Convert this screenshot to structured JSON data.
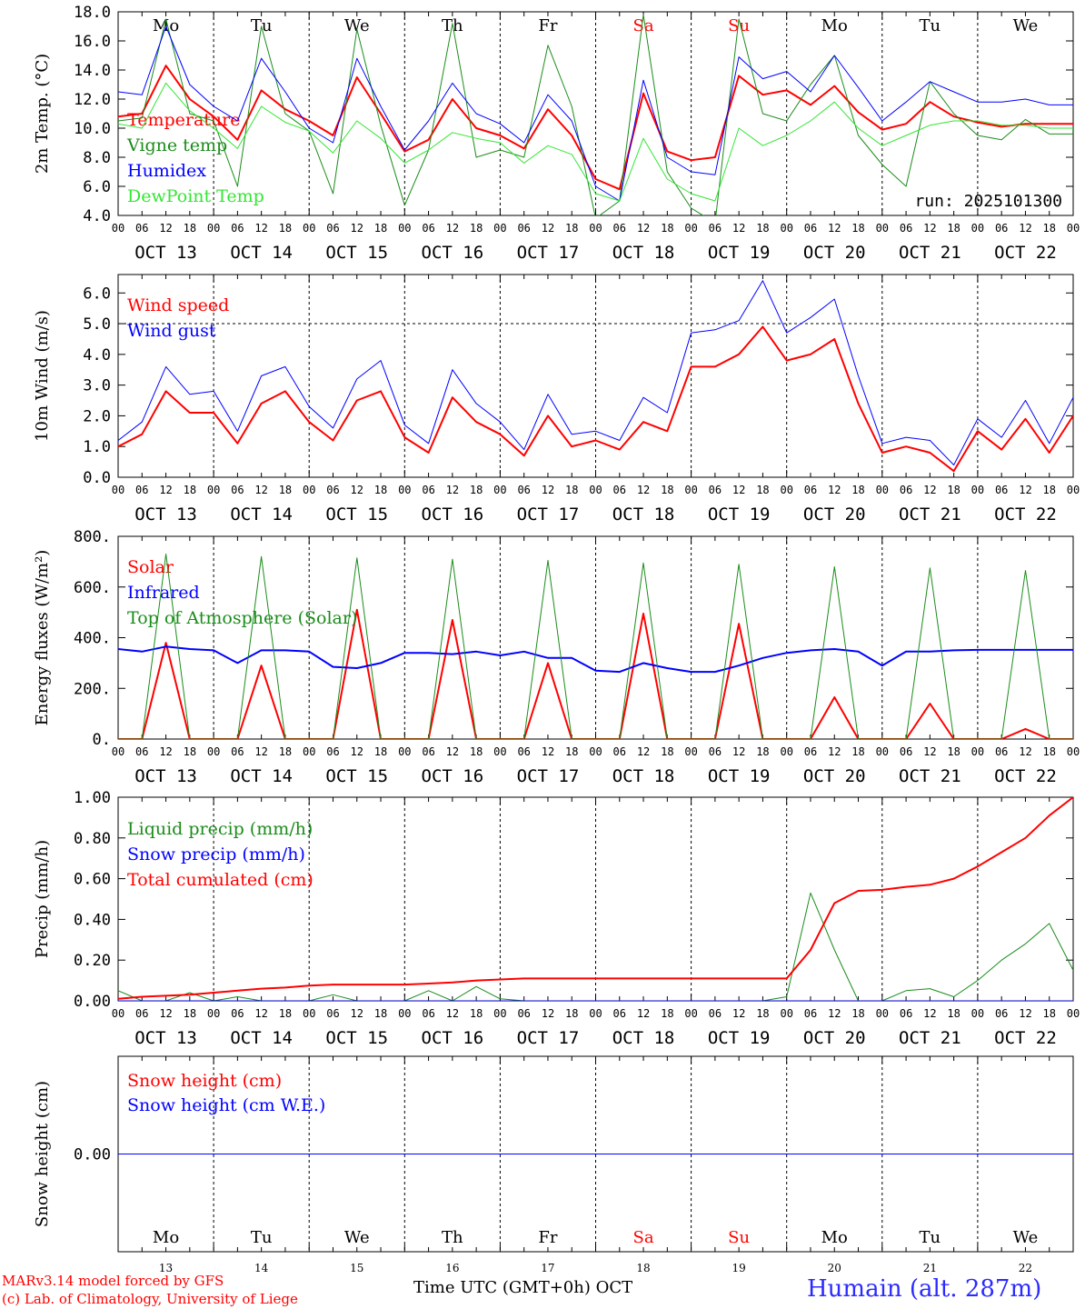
{
  "colors": {
    "red": "#ff0000",
    "green": "#1a8c1a",
    "blue": "#0000ff",
    "lightgreen": "#33e633",
    "axis": "#000000",
    "grid": "#000000"
  },
  "day_names": [
    "Mo",
    "Tu",
    "We",
    "Th",
    "Fr",
    "Sa",
    "Su",
    "Mo",
    "Tu",
    "We"
  ],
  "weekend_days": [
    5,
    6
  ],
  "day_labels": [
    "OCT 13",
    "OCT 14",
    "OCT 15",
    "OCT 16",
    "OCT 17",
    "OCT 18",
    "OCT 19",
    "OCT 20",
    "OCT 21",
    "OCT 22"
  ],
  "day_numbers": [
    "13",
    "14",
    "15",
    "16",
    "17",
    "18",
    "19",
    "20",
    "21",
    "22"
  ],
  "hour_ticks": [
    "00",
    "06",
    "12",
    "18"
  ],
  "hour_tick_end": "00",
  "footer": {
    "credit_line1": "MARv3.14 model forced by GFS",
    "credit_line2": "(c) Lab. of Climatology, University of Liege",
    "x_axis_label": "Time UTC (GMT+0h) OCT",
    "station": "Humain (alt. 287m)"
  },
  "chart_data": [
    {
      "type": "line",
      "title": "",
      "ylabel": "2m Temp. (°C)",
      "ylim": [
        4.0,
        18.0
      ],
      "yticks": [
        4.0,
        6.0,
        8.0,
        10.0,
        12.0,
        14.0,
        16.0,
        18.0
      ],
      "ytick_labels": [
        "4.0",
        "6.0",
        "8.0",
        "10.0",
        "12.0",
        "14.0",
        "16.0",
        "18.0"
      ],
      "annotation": "run: 2025101300",
      "x_hours": [
        0,
        6,
        12,
        18,
        24,
        30,
        36,
        42,
        48,
        54,
        60,
        66,
        72,
        78,
        84,
        90,
        96,
        102,
        108,
        114,
        120,
        126,
        132,
        138,
        144,
        150,
        156,
        162,
        168,
        174,
        180,
        186,
        192,
        198,
        204,
        210,
        216,
        222,
        228,
        234,
        240
      ],
      "series": [
        {
          "name": "Temperature",
          "color": "red",
          "width": 2,
          "values": [
            10.8,
            11.0,
            14.3,
            12.0,
            10.8,
            9.2,
            12.6,
            11.3,
            10.5,
            9.5,
            13.5,
            11.0,
            8.4,
            9.2,
            12.0,
            10.0,
            9.5,
            8.6,
            11.3,
            9.5,
            6.5,
            5.8,
            12.4,
            8.4,
            7.8,
            8.0,
            13.6,
            12.3,
            12.6,
            11.6,
            12.9,
            11.1,
            9.9,
            10.3,
            11.8,
            10.8,
            10.4,
            10.1,
            10.3,
            10.3,
            10.3
          ]
        },
        {
          "name": "Vigne temp",
          "color": "green",
          "width": 1,
          "values": [
            10.5,
            10.7,
            17.5,
            11.0,
            10.5,
            6.0,
            17.0,
            11.0,
            9.8,
            5.5,
            16.8,
            10.2,
            4.7,
            8.5,
            17.2,
            8.0,
            8.5,
            8.0,
            15.7,
            11.5,
            3.8,
            5.0,
            17.8,
            7.0,
            4.5,
            3.5,
            17.5,
            11.0,
            10.5,
            13.0,
            15.0,
            9.5,
            7.5,
            6.0,
            13.2,
            11.0,
            9.5,
            9.2,
            10.6,
            9.6,
            9.6
          ]
        },
        {
          "name": "Humidex",
          "color": "blue",
          "width": 1,
          "values": [
            12.5,
            12.3,
            17.0,
            13.0,
            11.5,
            10.5,
            14.8,
            12.5,
            10.0,
            9.0,
            14.8,
            11.5,
            8.5,
            10.5,
            13.1,
            11.0,
            10.3,
            9.0,
            12.3,
            10.5,
            6.0,
            5.0,
            13.3,
            8.0,
            7.0,
            6.8,
            14.9,
            13.4,
            13.9,
            12.5,
            15.0,
            12.8,
            10.5,
            11.8,
            13.2,
            12.5,
            11.8,
            11.8,
            12.0,
            11.6,
            11.6
          ]
        },
        {
          "name": "DewPoint Temp",
          "color": "lightgreen",
          "width": 1,
          "values": [
            10.3,
            10.0,
            13.1,
            11.2,
            10.0,
            8.6,
            11.5,
            10.4,
            9.8,
            8.3,
            10.5,
            9.3,
            7.6,
            8.5,
            9.7,
            9.3,
            9.0,
            7.6,
            8.8,
            8.2,
            5.5,
            5.0,
            9.3,
            6.5,
            5.5,
            5.0,
            10.0,
            8.8,
            9.5,
            10.5,
            11.8,
            10.0,
            8.8,
            9.5,
            10.2,
            10.5,
            10.5,
            10.2,
            10.2,
            10.0,
            10.0
          ]
        }
      ]
    },
    {
      "type": "line",
      "title": "",
      "ylabel": "10m Wind (m/s)",
      "ylim": [
        0.0,
        6.6
      ],
      "yticks": [
        0.0,
        1.0,
        2.0,
        3.0,
        4.0,
        5.0,
        6.0
      ],
      "ytick_labels": [
        "0.0",
        "1.0",
        "2.0",
        "3.0",
        "4.0",
        "5.0",
        "6.0"
      ],
      "reference_line": 5.0,
      "x_hours": [
        0,
        6,
        12,
        18,
        24,
        30,
        36,
        42,
        48,
        54,
        60,
        66,
        72,
        78,
        84,
        90,
        96,
        102,
        108,
        114,
        120,
        126,
        132,
        138,
        144,
        150,
        156,
        162,
        168,
        174,
        180,
        186,
        192,
        198,
        204,
        210,
        216,
        222,
        228,
        234,
        240
      ],
      "series": [
        {
          "name": "Wind speed",
          "color": "red",
          "width": 2,
          "values": [
            1.0,
            1.4,
            2.8,
            2.1,
            2.1,
            1.1,
            2.4,
            2.8,
            1.8,
            1.2,
            2.5,
            2.8,
            1.3,
            0.8,
            2.6,
            1.8,
            1.4,
            0.7,
            2.0,
            1.0,
            1.2,
            0.9,
            1.8,
            1.5,
            3.6,
            3.6,
            4.0,
            4.9,
            3.8,
            4.0,
            4.5,
            2.4,
            0.8,
            1.0,
            0.8,
            0.2,
            1.5,
            0.9,
            1.9,
            0.8,
            2.0
          ]
        },
        {
          "name": "Wind gust",
          "color": "blue",
          "width": 1,
          "values": [
            1.2,
            1.8,
            3.6,
            2.7,
            2.8,
            1.5,
            3.3,
            3.6,
            2.3,
            1.6,
            3.2,
            3.8,
            1.7,
            1.1,
            3.5,
            2.4,
            1.8,
            0.9,
            2.7,
            1.4,
            1.5,
            1.2,
            2.6,
            2.1,
            4.7,
            4.8,
            5.1,
            6.4,
            4.7,
            5.2,
            5.8,
            3.3,
            1.1,
            1.3,
            1.2,
            0.4,
            1.9,
            1.3,
            2.5,
            1.1,
            2.6
          ]
        }
      ]
    },
    {
      "type": "line",
      "title": "",
      "ylabel": "Energy fluxes (W/m²)",
      "ylim": [
        0,
        800
      ],
      "yticks": [
        0,
        200,
        400,
        600,
        800
      ],
      "ytick_labels": [
        "0.",
        "200.",
        "400.",
        "600.",
        "800."
      ],
      "x_hours": [
        0,
        6,
        12,
        18,
        24,
        30,
        36,
        42,
        48,
        54,
        60,
        66,
        72,
        78,
        84,
        90,
        96,
        102,
        108,
        114,
        120,
        126,
        132,
        138,
        144,
        150,
        156,
        162,
        168,
        174,
        180,
        186,
        192,
        198,
        204,
        210,
        216,
        222,
        228,
        234,
        240
      ],
      "series": [
        {
          "name": "Solar",
          "color": "red",
          "width": 2,
          "values": [
            0,
            0,
            380,
            0,
            0,
            0,
            290,
            0,
            0,
            0,
            510,
            0,
            0,
            0,
            470,
            0,
            0,
            0,
            300,
            0,
            0,
            0,
            495,
            0,
            0,
            0,
            455,
            0,
            0,
            0,
            165,
            0,
            0,
            0,
            140,
            0,
            0,
            0,
            40,
            0,
            0
          ]
        },
        {
          "name": "Infrared",
          "color": "blue",
          "width": 2,
          "values": [
            355,
            345,
            365,
            355,
            350,
            300,
            350,
            350,
            345,
            285,
            280,
            300,
            340,
            340,
            335,
            345,
            330,
            345,
            320,
            320,
            270,
            265,
            300,
            280,
            265,
            265,
            290,
            320,
            340,
            350,
            355,
            345,
            290,
            345,
            345,
            350,
            352,
            352,
            352,
            352,
            352
          ]
        },
        {
          "name": "Top of Atmosphere (Solar)",
          "color": "green",
          "width": 1,
          "values": [
            0,
            0,
            730,
            0,
            0,
            0,
            720,
            0,
            0,
            0,
            715,
            0,
            0,
            0,
            710,
            0,
            0,
            0,
            705,
            0,
            0,
            0,
            695,
            0,
            0,
            0,
            690,
            0,
            0,
            0,
            680,
            0,
            0,
            0,
            675,
            0,
            0,
            0,
            665,
            0,
            0
          ]
        }
      ]
    },
    {
      "type": "line",
      "title": "",
      "ylabel": "Precip (mm/h)",
      "ylim": [
        0.0,
        1.0
      ],
      "yticks": [
        0.0,
        0.2,
        0.4,
        0.6,
        0.8,
        1.0
      ],
      "ytick_labels": [
        "0.00",
        "0.20",
        "0.40",
        "0.60",
        "0.80",
        "1.00"
      ],
      "x_hours": [
        0,
        6,
        12,
        18,
        24,
        30,
        36,
        42,
        48,
        54,
        60,
        66,
        72,
        78,
        84,
        90,
        96,
        102,
        108,
        114,
        120,
        126,
        132,
        138,
        144,
        150,
        156,
        162,
        168,
        174,
        180,
        186,
        192,
        198,
        204,
        210,
        216,
        222,
        228,
        234,
        240
      ],
      "series": [
        {
          "name": "Liquid precip (mm/h)",
          "color": "green",
          "width": 1,
          "values": [
            0.05,
            0.0,
            0.0,
            0.04,
            0.0,
            0.02,
            0.0,
            0.0,
            0.0,
            0.03,
            0.0,
            0.0,
            0.0,
            0.05,
            0.0,
            0.07,
            0.01,
            0.0,
            0.0,
            0.0,
            0.0,
            0.0,
            0.0,
            0.0,
            0.0,
            0.0,
            0.0,
            0.0,
            0.02,
            0.53,
            0.25,
            0.0,
            0.0,
            0.05,
            0.06,
            0.02,
            0.1,
            0.2,
            0.28,
            0.38,
            0.15
          ]
        },
        {
          "name": "Snow precip (mm/h)",
          "color": "blue",
          "width": 1,
          "values": [
            0,
            0,
            0,
            0,
            0,
            0,
            0,
            0,
            0,
            0,
            0,
            0,
            0,
            0,
            0,
            0,
            0,
            0,
            0,
            0,
            0,
            0,
            0,
            0,
            0,
            0,
            0,
            0,
            0,
            0,
            0,
            0,
            0,
            0,
            0,
            0,
            0,
            0,
            0,
            0,
            0
          ]
        },
        {
          "name": "Total cumulated (cm)",
          "color": "red",
          "width": 2,
          "values": [
            0.01,
            0.02,
            0.025,
            0.03,
            0.04,
            0.05,
            0.06,
            0.065,
            0.075,
            0.08,
            0.08,
            0.08,
            0.08,
            0.085,
            0.09,
            0.1,
            0.105,
            0.11,
            0.11,
            0.11,
            0.11,
            0.11,
            0.11,
            0.11,
            0.11,
            0.11,
            0.11,
            0.11,
            0.11,
            0.25,
            0.48,
            0.54,
            0.545,
            0.56,
            0.57,
            0.6,
            0.66,
            0.73,
            0.8,
            0.91,
            1.0
          ]
        }
      ]
    },
    {
      "type": "line",
      "title": "",
      "ylabel": "Snow height (cm)",
      "ylim": [
        -1.0,
        1.0
      ],
      "yticks": [
        0.0
      ],
      "ytick_labels": [
        "0.00"
      ],
      "x_hours": [
        0,
        240
      ],
      "series": [
        {
          "name": "Snow height (cm)",
          "color": "red",
          "width": 1,
          "values": [
            0.0,
            0.0
          ]
        },
        {
          "name": "Snow height (cm W.E.)",
          "color": "blue",
          "width": 1,
          "values": [
            0.0,
            0.0
          ]
        }
      ]
    }
  ]
}
